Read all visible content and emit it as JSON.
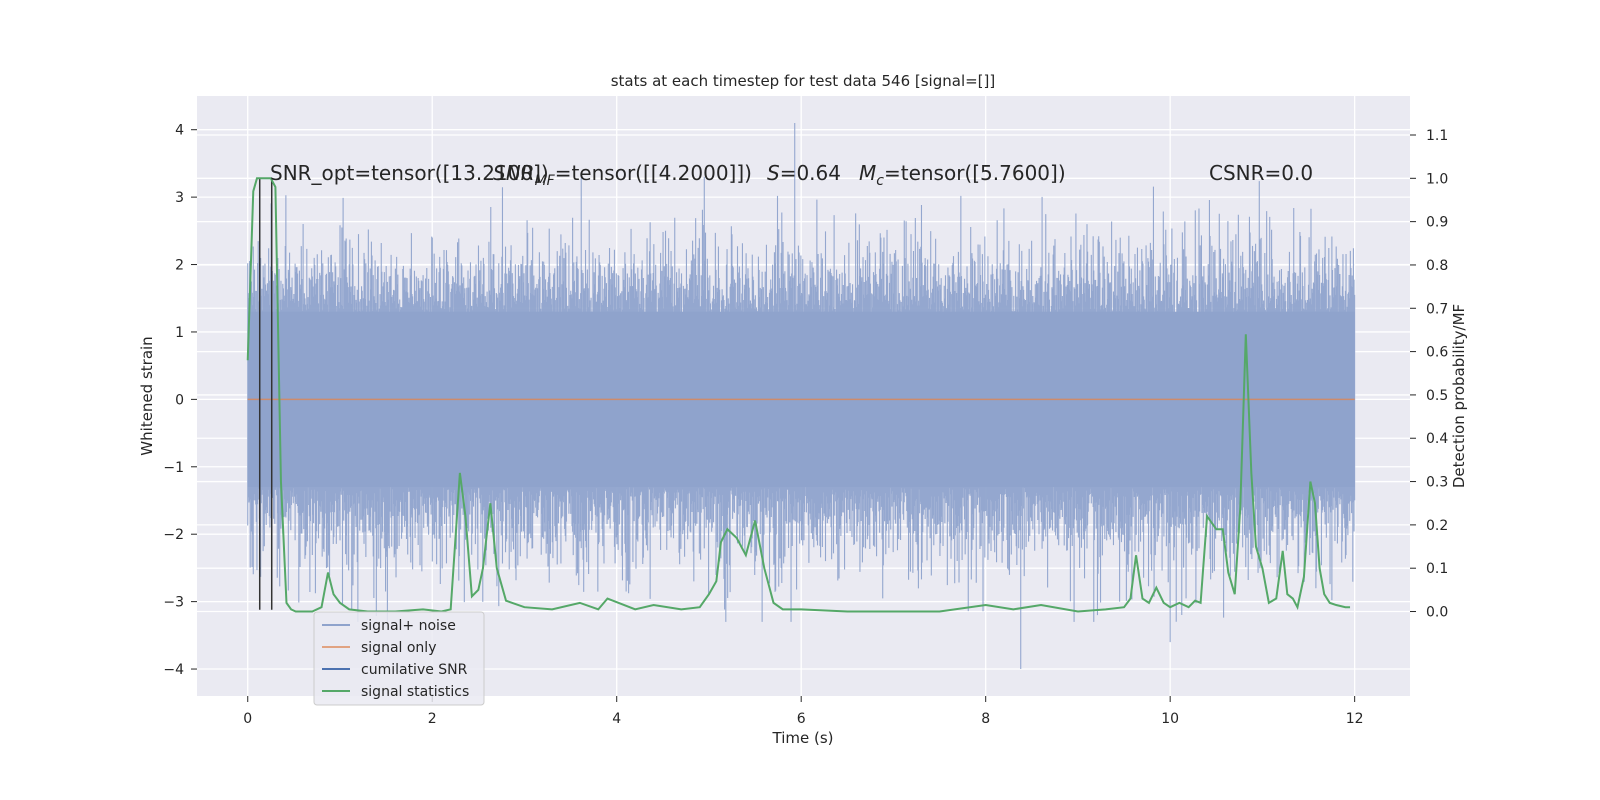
{
  "chart_data": {
    "type": "line",
    "title": "stats at each timestep for test data 546 [signal=[]]",
    "xlabel": "Time (s)",
    "ylabel_left": "Whitened strain",
    "ylabel_right": "Detection probability/MF",
    "xlim": [
      -0.55,
      12.6
    ],
    "ylim_left": [
      -4.4,
      4.5
    ],
    "ylim_right": [
      -0.195,
      1.19
    ],
    "xticks": [
      0,
      2,
      4,
      6,
      8,
      10,
      12
    ],
    "yticks_left": [
      -4,
      -3,
      -2,
      -1,
      0,
      1,
      2,
      3,
      4
    ],
    "yticks_right": [
      0.0,
      0.1,
      0.2,
      0.3,
      0.4,
      0.5,
      0.6,
      0.7,
      0.8,
      0.9,
      1.0,
      1.1
    ],
    "grid": true,
    "legend_position": "bottom-left",
    "annotations": {
      "snr_opt": "SNR_opt=tensor([13.2100])",
      "snr_mf_prefix": "SNR",
      "snr_mf_sub": "MF",
      "snr_mf_value": "=tensor([[4.2000]])",
      "s_prefix": "S",
      "s_value": "=0.64",
      "mc_prefix": "M",
      "mc_sub": "c",
      "mc_value": "=tensor([5.7600])",
      "csnr": "CSNR=0.0"
    },
    "series": [
      {
        "name": "signal+ noise",
        "color": "#8fa3cc",
        "axis": "left",
        "description_points": {
          "x_range": [
            0,
            12
          ],
          "envelope_upper_typical": 1.9,
          "envelope_lower_typical": -2.0,
          "max": 4.1,
          "min": -4.0
        }
      },
      {
        "name": "signal only",
        "color": "#dd8452",
        "axis": "left",
        "x": [
          0,
          12
        ],
        "y": [
          0,
          0
        ]
      },
      {
        "name": "cumilative SNR",
        "color": "#4c72b0",
        "axis": "left",
        "x": [],
        "y": []
      },
      {
        "name": "signal statistics",
        "color": "#55a868",
        "axis": "right",
        "x": [
          0.0,
          0.06,
          0.1,
          0.13,
          0.2,
          0.25,
          0.3,
          0.36,
          0.42,
          0.47,
          0.52,
          0.6,
          0.7,
          0.8,
          0.87,
          0.93,
          1.0,
          1.1,
          1.3,
          1.6,
          1.9,
          2.1,
          2.2,
          2.3,
          2.36,
          2.43,
          2.5,
          2.55,
          2.63,
          2.7,
          2.8,
          3.0,
          3.3,
          3.6,
          3.8,
          3.9,
          4.2,
          4.4,
          4.7,
          4.9,
          5.0,
          5.08,
          5.13,
          5.2,
          5.3,
          5.4,
          5.5,
          5.6,
          5.7,
          5.8,
          6.0,
          6.5,
          7.0,
          7.5,
          8.0,
          8.3,
          8.6,
          9.0,
          9.3,
          9.5,
          9.57,
          9.63,
          9.7,
          9.77,
          9.85,
          9.93,
          10.0,
          10.1,
          10.2,
          10.27,
          10.33,
          10.4,
          10.5,
          10.57,
          10.63,
          10.7,
          10.76,
          10.82,
          10.88,
          10.93,
          11.0,
          11.07,
          11.15,
          11.22,
          11.27,
          11.33,
          11.38,
          11.45,
          11.52,
          11.57,
          11.62,
          11.67,
          11.73,
          11.8,
          11.9,
          11.95
        ],
        "y": [
          0.58,
          0.97,
          1.0,
          1.0,
          1.0,
          1.0,
          0.98,
          0.3,
          0.02,
          0.005,
          0.0,
          0.0,
          0.0,
          0.01,
          0.09,
          0.04,
          0.02,
          0.005,
          0.0,
          0.0,
          0.005,
          0.0,
          0.005,
          0.32,
          0.22,
          0.035,
          0.05,
          0.1,
          0.25,
          0.1,
          0.025,
          0.01,
          0.005,
          0.02,
          0.005,
          0.03,
          0.005,
          0.015,
          0.005,
          0.01,
          0.04,
          0.07,
          0.16,
          0.19,
          0.17,
          0.13,
          0.21,
          0.1,
          0.02,
          0.005,
          0.005,
          0.0,
          0.0,
          0.0,
          0.015,
          0.005,
          0.015,
          0.0,
          0.005,
          0.01,
          0.03,
          0.13,
          0.03,
          0.02,
          0.055,
          0.02,
          0.01,
          0.02,
          0.01,
          0.025,
          0.02,
          0.22,
          0.19,
          0.19,
          0.09,
          0.04,
          0.24,
          0.64,
          0.32,
          0.15,
          0.1,
          0.02,
          0.03,
          0.14,
          0.04,
          0.03,
          0.01,
          0.08,
          0.3,
          0.25,
          0.1,
          0.04,
          0.02,
          0.015,
          0.01,
          0.01
        ]
      }
    ],
    "vertical_lines": {
      "color": "#333333",
      "x": [
        0.13,
        0.26
      ]
    }
  }
}
